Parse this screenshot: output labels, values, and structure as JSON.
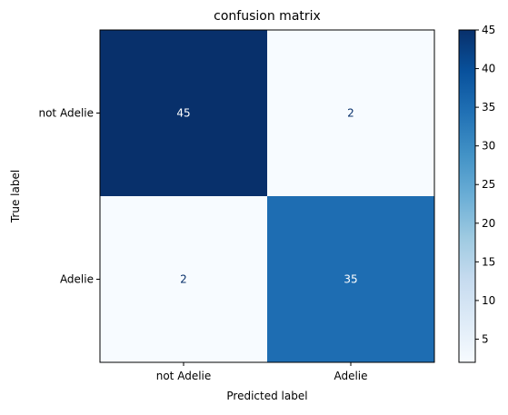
{
  "chart_data": {
    "type": "heatmap",
    "title": "confusion matrix",
    "xlabel": "Predicted label",
    "ylabel": "True label",
    "row_labels": [
      "not Adelie",
      "Adelie"
    ],
    "col_labels": [
      "not Adelie",
      "Adelie"
    ],
    "matrix": [
      [
        45,
        2
      ],
      [
        2,
        35
      ]
    ],
    "colormap": "Blues",
    "color_range": [
      2,
      45
    ],
    "colorbar_ticks": [
      5,
      10,
      15,
      20,
      25,
      30,
      35,
      40,
      45
    ],
    "colors": {
      "low": "#f7fbff",
      "high": "#08306b",
      "text_dark": "#08306b",
      "text_light": "#ffffff"
    }
  }
}
